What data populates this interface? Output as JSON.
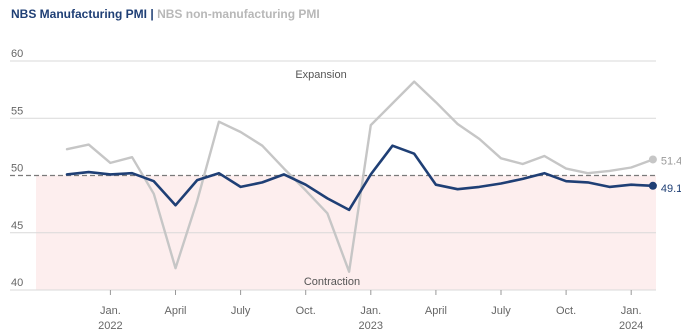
{
  "header": {
    "title_main": "NBS Manufacturing PMI",
    "title_sep": "|",
    "title_sub": "NBS non-manufacturing PMI"
  },
  "colors": {
    "manufacturing": "#1f3f75",
    "non_manufacturing": "#c6c6c6",
    "contraction_fill": "#fdeeee",
    "grid": "#d9d9d9",
    "threshold": "#7a7a7a"
  },
  "chart_data": {
    "type": "line",
    "x": [
      "2021-11",
      "2021-12",
      "2022-01",
      "2022-02",
      "2022-03",
      "2022-04",
      "2022-05",
      "2022-06",
      "2022-07",
      "2022-08",
      "2022-09",
      "2022-10",
      "2022-11",
      "2022-12",
      "2023-01",
      "2023-02",
      "2023-03",
      "2023-04",
      "2023-05",
      "2023-06",
      "2023-07",
      "2023-08",
      "2023-09",
      "2023-10",
      "2023-11",
      "2023-12",
      "2024-01",
      "2024-02"
    ],
    "series": [
      {
        "name": "NBS Manufacturing PMI",
        "values": [
          50.1,
          50.3,
          50.1,
          50.2,
          49.5,
          47.4,
          49.6,
          50.2,
          49.0,
          49.4,
          50.1,
          49.2,
          48.0,
          47.0,
          50.1,
          52.6,
          51.9,
          49.2,
          48.8,
          49.0,
          49.3,
          49.7,
          50.2,
          49.5,
          49.4,
          49.0,
          49.2,
          49.1
        ]
      },
      {
        "name": "NBS non-manufacturing PMI",
        "values": [
          52.3,
          52.7,
          51.1,
          51.6,
          48.4,
          41.9,
          47.8,
          54.7,
          53.8,
          52.6,
          50.6,
          48.7,
          46.7,
          41.6,
          54.4,
          56.3,
          58.2,
          56.4,
          54.5,
          53.2,
          51.5,
          51.0,
          51.7,
          50.6,
          50.2,
          50.4,
          50.7,
          51.4
        ]
      }
    ],
    "ylim": [
      40,
      60
    ],
    "yticks": [
      40,
      45,
      50,
      55,
      60
    ],
    "threshold": 50,
    "grid": true,
    "xtick_labels": [
      {
        "at": "2022-01",
        "line1": "Jan.",
        "line2": "2022"
      },
      {
        "at": "2022-04",
        "line1": "April",
        "line2": ""
      },
      {
        "at": "2022-07",
        "line1": "July",
        "line2": ""
      },
      {
        "at": "2022-10",
        "line1": "Oct.",
        "line2": ""
      },
      {
        "at": "2023-01",
        "line1": "Jan.",
        "line2": "2023"
      },
      {
        "at": "2023-04",
        "line1": "April",
        "line2": ""
      },
      {
        "at": "2023-07",
        "line1": "July",
        "line2": ""
      },
      {
        "at": "2023-10",
        "line1": "Oct.",
        "line2": ""
      },
      {
        "at": "2024-01",
        "line1": "Jan.",
        "line2": "2024"
      }
    ],
    "annotations": {
      "expansion": "Expansion",
      "contraction": "Contraction"
    },
    "end_labels": {
      "non_manufacturing": "51.4",
      "manufacturing": "49.1"
    }
  }
}
